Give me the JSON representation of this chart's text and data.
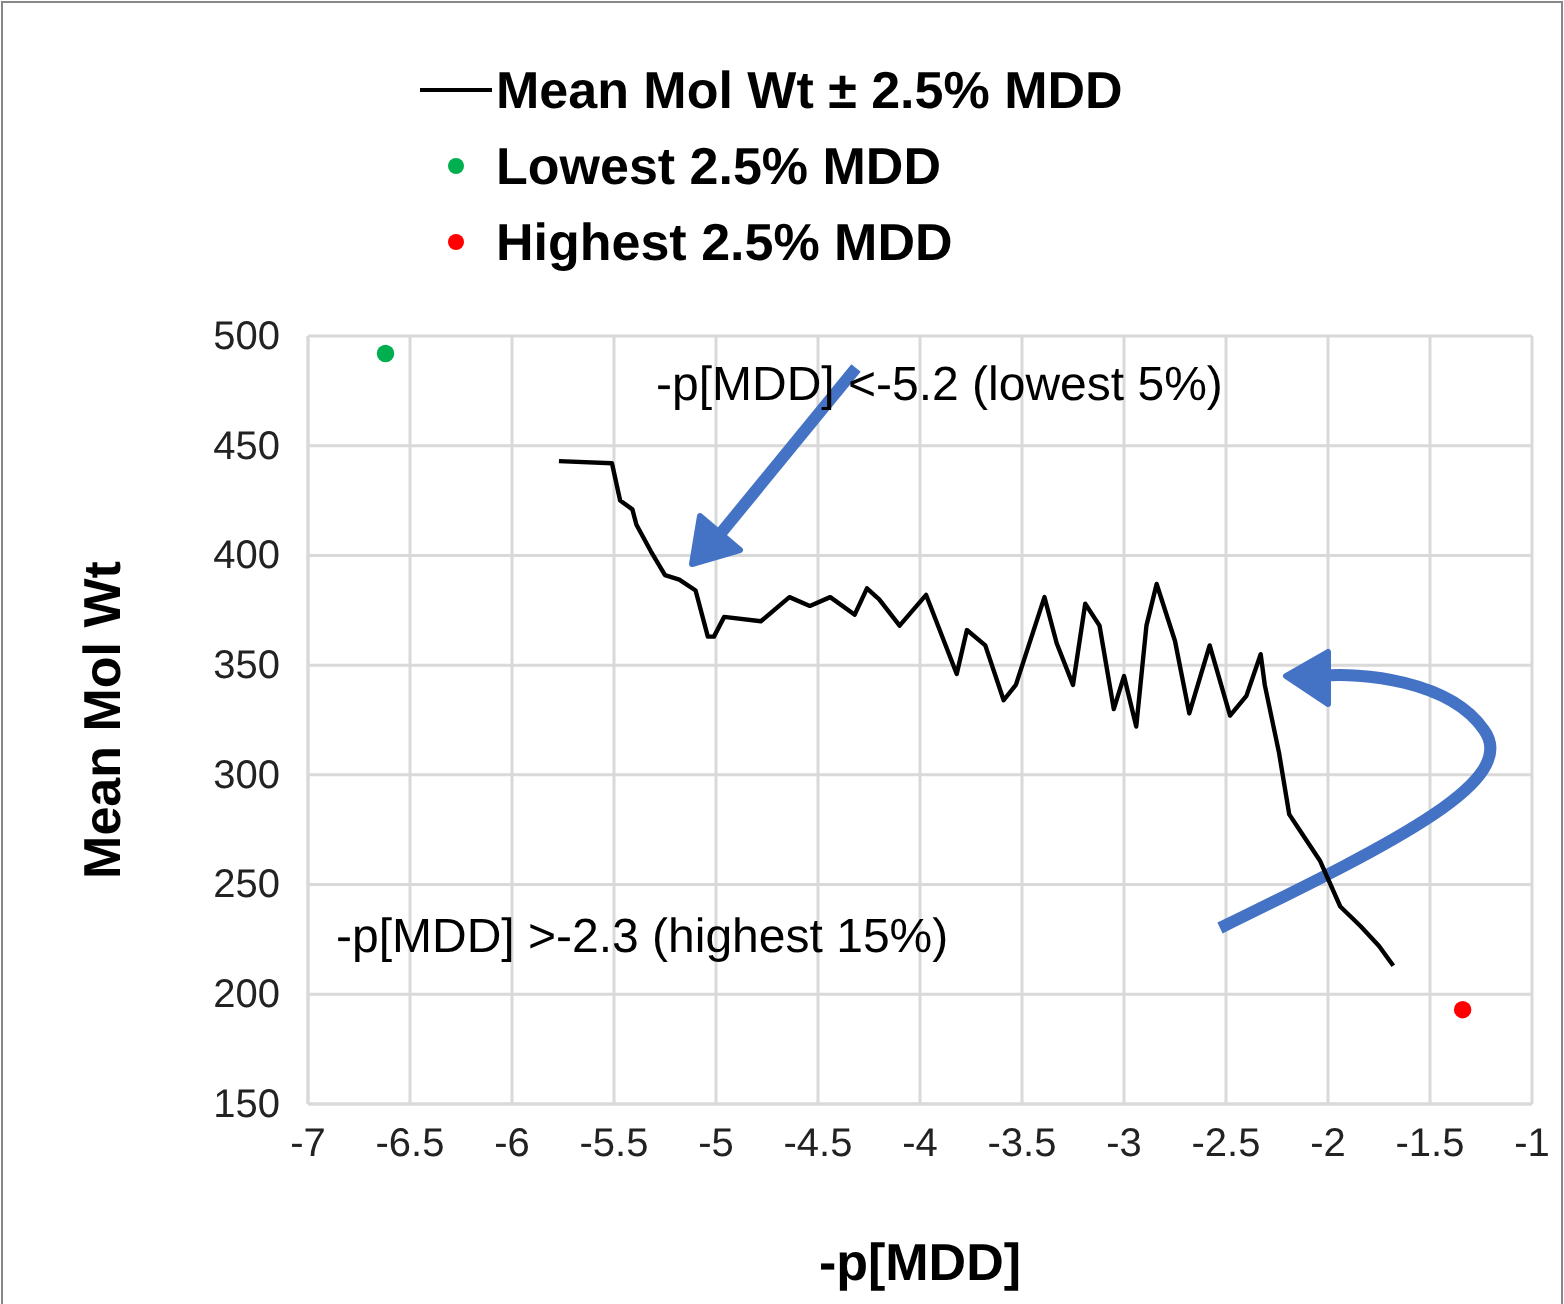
{
  "chart_data": {
    "type": "line",
    "xlabel": "-p[MDD]",
    "ylabel": "Mean Mol Wt",
    "xlim": [
      -7,
      -1
    ],
    "ylim": [
      150,
      500
    ],
    "xticks": [
      -7,
      -6.5,
      -6,
      -5.5,
      -5,
      -4.5,
      -4,
      -3.5,
      -3,
      -2.5,
      -2,
      -1.5,
      -1
    ],
    "yticks": [
      150,
      200,
      250,
      300,
      350,
      400,
      450,
      500
    ],
    "grid": true,
    "legend": "top",
    "line_style": "solid",
    "annotations": [
      "-p[MDD] <-5.2 (lowest 5%)",
      "-p[MDD] >-2.3 (highest 15%)"
    ],
    "series": [
      {
        "name": "Mean Mol Wt ± 2.5% MDD",
        "color": "#000000",
        "marker": "none",
        "x": [
          -5.77,
          -5.51,
          -5.47,
          -5.41,
          -5.39,
          -5.32,
          -5.25,
          -5.18,
          -5.1,
          -5.04,
          -5.01,
          -4.96,
          -4.78,
          -4.64,
          -4.54,
          -4.44,
          -4.32,
          -4.26,
          -4.2,
          -4.1,
          -3.97,
          -3.82,
          -3.77,
          -3.68,
          -3.59,
          -3.53,
          -3.39,
          -3.33,
          -3.25,
          -3.19,
          -3.12,
          -3.05,
          -3,
          -2.94,
          -2.89,
          -2.84,
          -2.75,
          -2.68,
          -2.58,
          -2.48,
          -2.4,
          -2.33,
          -2.31,
          -2.24,
          -2.19,
          -2.14,
          -2.04,
          -1.94,
          -1.84,
          -1.75,
          -1.68
        ],
        "values": [
          443,
          442,
          425,
          421,
          414,
          402,
          391,
          389,
          384,
          363,
          363,
          372,
          370,
          381,
          377,
          381,
          373,
          385,
          380,
          368,
          382,
          346,
          366,
          359,
          334,
          341,
          381,
          360,
          341,
          378,
          368,
          330,
          345,
          322,
          368,
          387,
          361,
          328,
          359,
          327,
          336,
          355,
          341,
          310,
          282,
          275,
          261,
          240,
          231,
          222,
          213
        ]
      },
      {
        "name": "Lowest 2.5% MDD",
        "type": "scatter",
        "color": "#00b050",
        "marker": "circle",
        "x": [
          -6.62
        ],
        "values": [
          492
        ]
      },
      {
        "name": "Highest 2.5% MDD",
        "type": "scatter",
        "color": "#ff0000",
        "marker": "circle",
        "x": [
          -1.34
        ],
        "values": [
          193
        ]
      }
    ]
  }
}
